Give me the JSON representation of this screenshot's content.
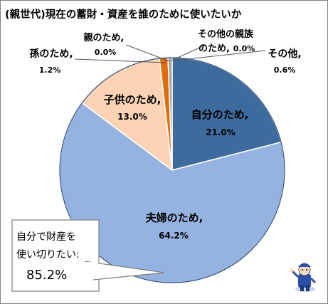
{
  "chart_data": {
    "type": "pie",
    "title": "(親世代)現在の蓄財・資産を誰のために使いたいか",
    "slices": [
      {
        "label": "自分のため,",
        "value": 21.0,
        "value_text": "21.0%",
        "color": "#3d6b9e"
      },
      {
        "label": "夫婦のため,",
        "value": 64.2,
        "value_text": "64.2%",
        "color": "#95b3e0"
      },
      {
        "label": "子供のため,",
        "value": 13.0,
        "value_text": "13.0%",
        "color": "#fcd4b5"
      },
      {
        "label": "孫のため,",
        "value": 1.2,
        "value_text": "1.2%",
        "color": "#e36c0a"
      },
      {
        "label": "親のため,",
        "value": 0.0,
        "value_text": "0.0%",
        "color": "#7f7f7f"
      },
      {
        "label": "その他の親族のため,",
        "value": 0.0,
        "value_text": "0.0%",
        "color": "#4f81bd"
      },
      {
        "label": "その他,",
        "value": 0.6,
        "value_text": "0.6%",
        "color": "#a6a6a6"
      }
    ],
    "start_angle": "12 o'clock",
    "direction": "clockwise",
    "legend": "none"
  },
  "callout": {
    "line1": "自分で財産を",
    "line2": "使い切りたい:",
    "value": "85.2%"
  },
  "mascot": {
    "icon": "mascot-character-icon"
  }
}
